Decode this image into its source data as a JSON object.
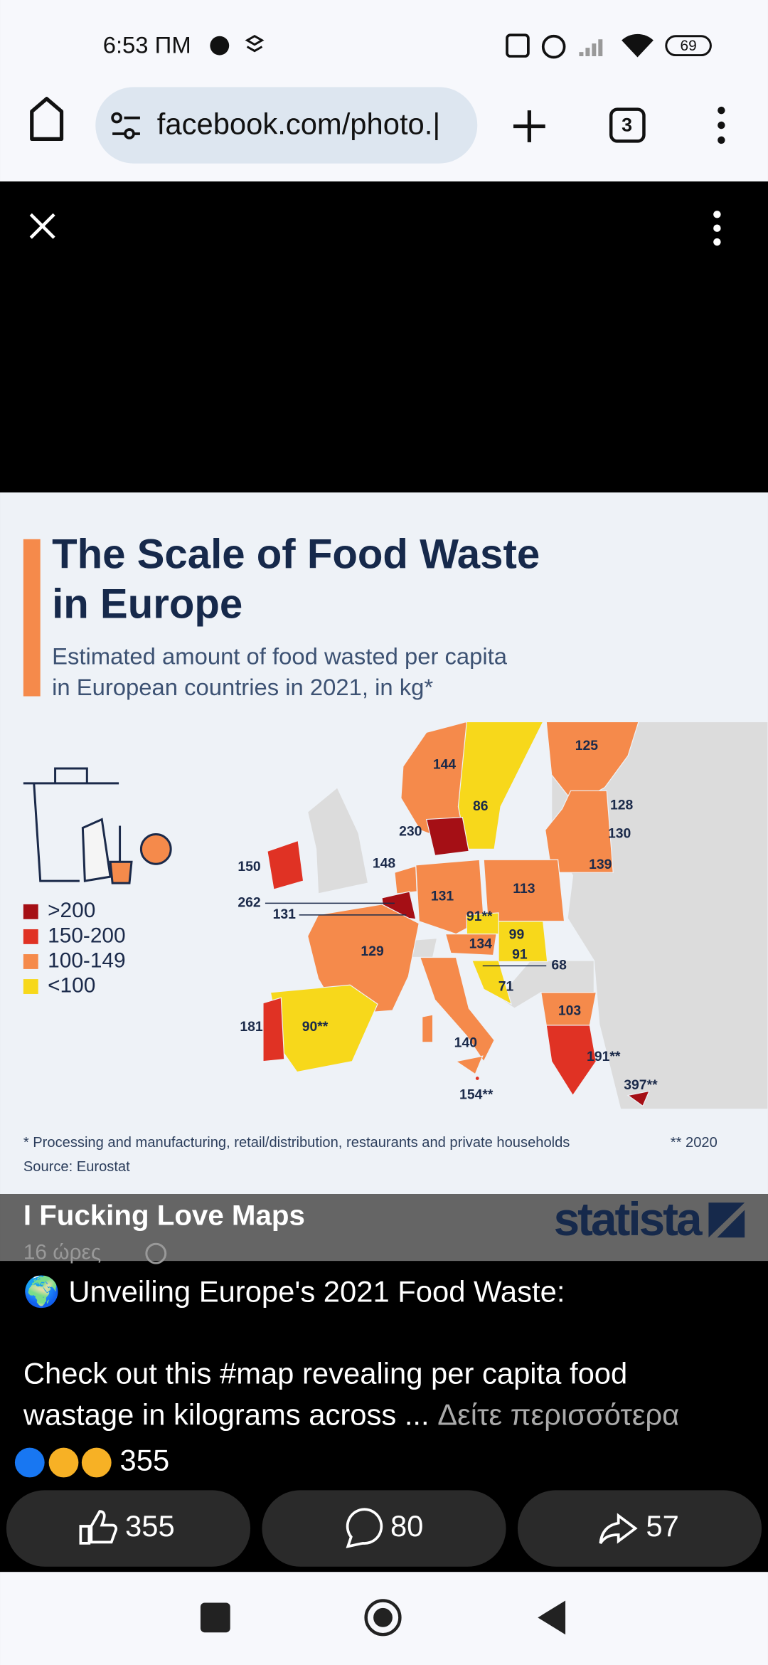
{
  "status_bar": {
    "time": "6:53 ΠΜ",
    "battery": "69"
  },
  "browser": {
    "url": "facebook.com/photo.|",
    "tab_count": "3"
  },
  "infographic": {
    "title_lines": [
      "The Scale of Food Waste",
      "in Europe"
    ],
    "subtitle_lines": [
      "Estimated amount of food wasted per capita",
      "in European countries in 2021, in kg*"
    ],
    "legend": [
      ">200",
      "150-200",
      "100-149",
      "<100"
    ],
    "map_labels": [
      "144",
      "86",
      "125",
      "128",
      "130",
      "139",
      "230",
      "148",
      "150",
      "262",
      "131",
      "131",
      "113",
      "91**",
      "99",
      "91",
      "134",
      "68",
      "129",
      "71",
      "103",
      "181",
      "90**",
      "140",
      "191**",
      "397**",
      "154**"
    ],
    "footnote": "* Processing and manufacturing, retail/distribution, restaurants and private households",
    "footnote2": "** 2020",
    "source": "Source: Eurostat",
    "brand": "statista"
  },
  "post": {
    "author": "I Fucking Love Maps",
    "time": "16 ώρες",
    "caption_line1": "🌍 Unveiling Europe's 2021 Food Waste:",
    "caption_line2": "Check out this #map revealing per capita food",
    "caption_line3": "wastage in kilograms across ...",
    "see_more": "Δείτε περισσότερα",
    "reaction_count": "355",
    "like_count": "355",
    "comment_count": "80",
    "share_count": "57"
  }
}
